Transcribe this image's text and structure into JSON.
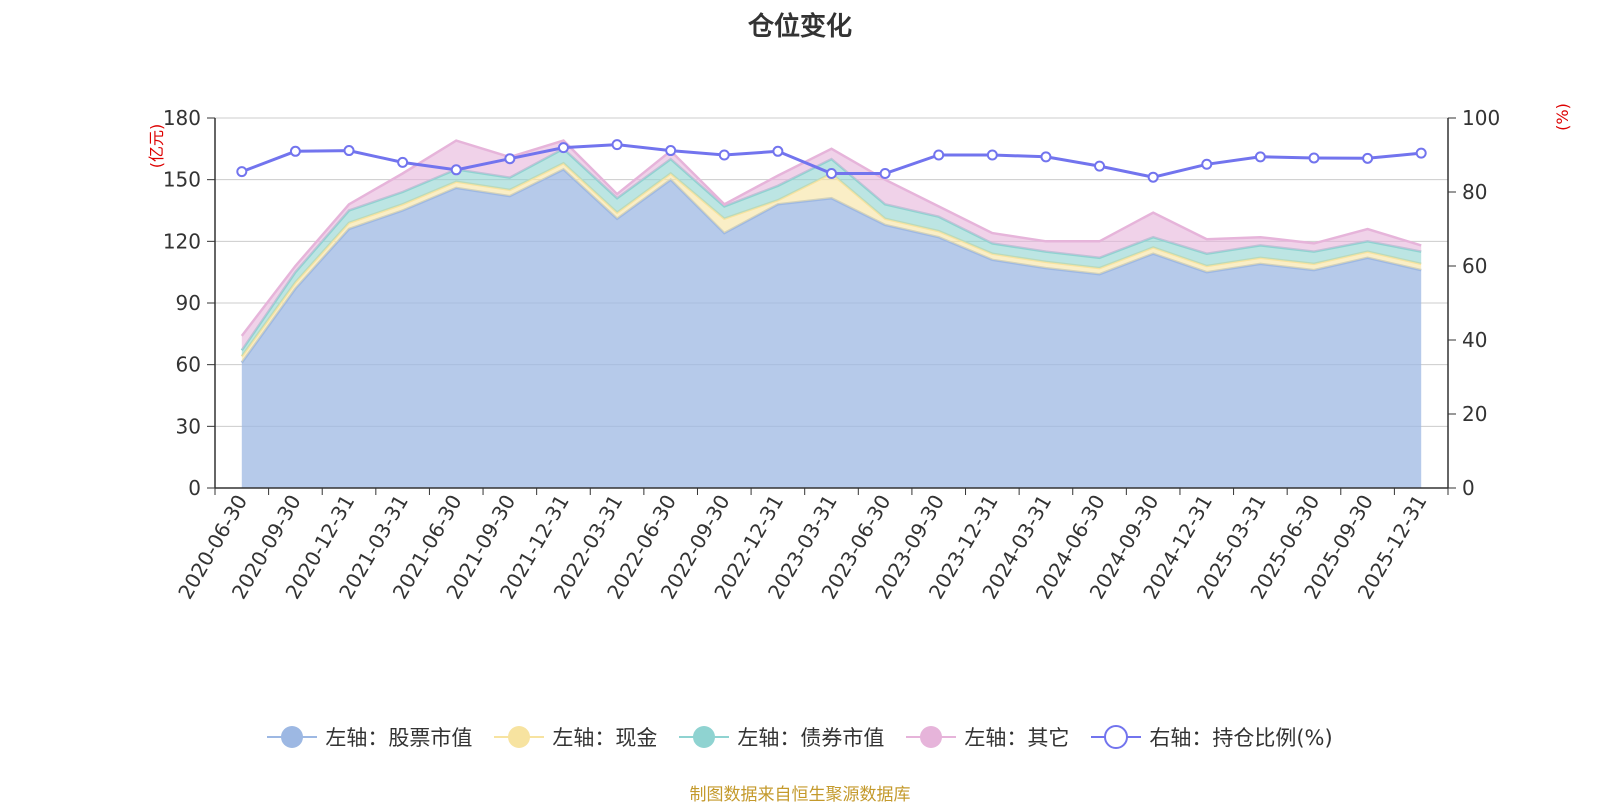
{
  "title": "仓位变化",
  "source": "制图数据来自恒生聚源数据库",
  "colors": {
    "stock": "#9db8e3",
    "cash": "#f7e3a0",
    "bond": "#8fd3d1",
    "other": "#e6b4da",
    "ratio": "#7274ee",
    "source_text": "#c49a2c",
    "axis_unit": "#dd0000"
  },
  "chart_data": {
    "type": "area",
    "categories": [
      "2020-06-30",
      "2020-09-30",
      "2020-12-31",
      "2021-03-31",
      "2021-06-30",
      "2021-09-30",
      "2021-12-31",
      "2022-03-31",
      "2022-06-30",
      "2022-09-30",
      "2022-12-31",
      "2023-03-31",
      "2023-06-30",
      "2023-09-30",
      "2023-12-31",
      "2024-03-31",
      "2024-06-30",
      "2024-09-30",
      "2024-12-31",
      "2025-03-31",
      "2025-06-30",
      "2025-09-30",
      "2025-12-31"
    ],
    "left_axis": {
      "unit": "(亿元)",
      "min": 0,
      "max": 180,
      "ticks": [
        0,
        30,
        60,
        90,
        120,
        150,
        180
      ]
    },
    "right_axis": {
      "unit": "(%)",
      "min": 0,
      "max": 100,
      "ticks": [
        0,
        20,
        40,
        60,
        80,
        100
      ]
    },
    "series": [
      {
        "name": "左轴：股票市值",
        "axis": "left",
        "stack": true,
        "values": [
          61,
          97,
          126,
          135,
          146,
          142,
          155,
          131,
          150,
          124,
          138,
          141,
          128,
          122,
          111,
          107,
          104,
          114,
          105,
          109,
          106,
          112,
          106
        ]
      },
      {
        "name": "左轴：现金",
        "axis": "left",
        "stack": true,
        "values": [
          3,
          3,
          3,
          3,
          3,
          3,
          3,
          3,
          3,
          7,
          2,
          12,
          3,
          3,
          3,
          3,
          3,
          3,
          3,
          3,
          3,
          3,
          3
        ]
      },
      {
        "name": "左轴：债券市值",
        "axis": "left",
        "stack": true,
        "values": [
          3,
          5,
          6,
          6,
          6,
          6,
          7,
          7,
          7,
          6,
          7,
          7,
          7,
          7,
          5,
          5,
          5,
          5,
          6,
          6,
          6,
          5,
          6
        ]
      },
      {
        "name": "左轴：其它",
        "axis": "left",
        "stack": true,
        "values": [
          7,
          3,
          3,
          9,
          14,
          10,
          4,
          2,
          4,
          1,
          5,
          5,
          12,
          5,
          5,
          5,
          8,
          12,
          7,
          4,
          4,
          6,
          3
        ]
      },
      {
        "name": "右轴：持仓比例(%)",
        "axis": "right",
        "stack": false,
        "type": "line",
        "values": [
          85.5,
          91,
          91.2,
          88,
          86,
          89,
          92,
          92.8,
          91.2,
          90,
          91,
          85,
          85,
          90,
          90,
          89.5,
          87,
          84,
          87.5,
          89.5,
          89.2,
          89.1,
          90.5
        ]
      }
    ]
  }
}
